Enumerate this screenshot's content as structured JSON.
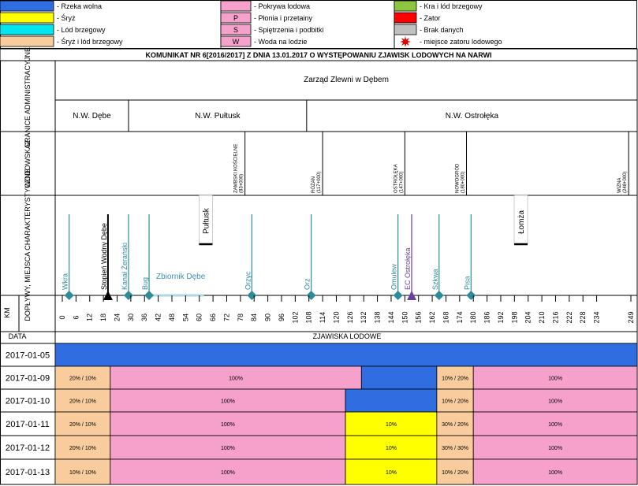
{
  "legend": [
    {
      "code": "",
      "label": "- Rzeka wolna",
      "color": "#2f6de0"
    },
    {
      "code": "",
      "label": "- Śryż",
      "color": "#ffff00"
    },
    {
      "code": "",
      "label": "- Lód brzegowy",
      "color": "#00e5ee"
    },
    {
      "code": "",
      "label": "- Śryż i lód brzegowy",
      "color": "#f9cc9d"
    },
    {
      "code": "",
      "label": "- Pokrywa lodowa",
      "color": "#f6a0cc"
    },
    {
      "code": "P",
      "label": "- Płonia i przetainy",
      "color": "#f6a0cc"
    },
    {
      "code": "S",
      "label": "- Spiętrzenia i podbitki",
      "color": "#f6a0cc"
    },
    {
      "code": "W",
      "label": "- Woda na lodzie",
      "color": "#f6a0cc"
    },
    {
      "code": "",
      "label": "- Kra i lód brzegowy",
      "color": "#8cc63f"
    },
    {
      "code": "",
      "label": "- Zator",
      "color": "#ff0000"
    },
    {
      "code": "",
      "label": "- Brak danych",
      "color": "#c0c0c0"
    },
    {
      "code": "",
      "label": "- miejsce zatoru lodowego",
      "color": "star"
    }
  ],
  "title": "KOMUNIKAT NR 6[2016/2017] Z DNIA 13.01.2017 O WYSTĘPOWANIU ZJAWISK LODOWYCH NA NARWI",
  "row_labels": {
    "granice": "GRANICE ADMINISTRACYJNE",
    "wodowskaz": "WODOWSKAZ",
    "doplywy": "DOPŁYWY, MIEJSCA CHARAKTERYSTYCZNE",
    "km": "KM",
    "data": "DATA",
    "zjawiska": "ZJAWISKA LODOWE"
  },
  "zarzad": "Zarząd Zlewni w Dębem",
  "nw": [
    {
      "label": "N.W. Dębe",
      "km_start": -3,
      "km_end": 29
    },
    {
      "label": "N.W. Pułtusk",
      "km_start": 29,
      "km_end": 107
    },
    {
      "label": "N.W. Ostrołęka",
      "km_start": 107,
      "km_end": 250
    }
  ],
  "gauges": [
    {
      "name": "ZAMBSKI KOŚCIELNE",
      "km_text": "(83+000)",
      "km": 80
    },
    {
      "name": "RÓŻAN",
      "km_text": "(117+000)",
      "km": 114
    },
    {
      "name": "OSTROŁĘKA",
      "km_text": "(147+000)",
      "km": 150
    },
    {
      "name": "NOWOGRÓD",
      "km_text": "(180+000)",
      "km": 177
    },
    {
      "name": "WIZNA",
      "km_text": "(248+000)",
      "km": 248
    }
  ],
  "features": [
    {
      "name": "Wkra",
      "km": 3,
      "type": "tributary"
    },
    {
      "name": "Stopień Wodny Dębe",
      "km": 20,
      "type": "dam"
    },
    {
      "name": "Kanał Żerański",
      "km": 29,
      "type": "tributary"
    },
    {
      "name": "Bug",
      "km": 38,
      "type": "tributary"
    },
    {
      "name": "Orzyc",
      "km": 83,
      "type": "tributary"
    },
    {
      "name": "Orz",
      "km": 109,
      "type": "tributary"
    },
    {
      "name": "Omulew",
      "km": 147,
      "type": "tributary"
    },
    {
      "name": "EC Ostrołęka",
      "km": 153,
      "type": "plant"
    },
    {
      "name": "Szkwa",
      "km": 165,
      "type": "tributary"
    },
    {
      "name": "Pisa",
      "km": 179,
      "type": "tributary"
    }
  ],
  "reservoir": {
    "name": "Zbiornik Dębe",
    "km_start": 38,
    "km_end": 62
  },
  "towns": [
    {
      "name": "Pułtusk",
      "km": 63
    },
    {
      "name": "Łomża",
      "km": 201
    }
  ],
  "km_ticks": [
    "0",
    "6",
    "12",
    "18",
    "24",
    "30",
    "36",
    "42",
    "48",
    "54",
    "60",
    "66",
    "72",
    "78",
    "84",
    "90",
    "96",
    "102",
    "108",
    "114",
    "120",
    "126",
    "132",
    "138",
    "144",
    "150",
    "156",
    "162",
    "168",
    "174",
    "180",
    "186",
    "192",
    "198",
    "204",
    "210",
    "216",
    "222",
    "228",
    "234",
    "249"
  ],
  "dates": [
    {
      "date": "2017-01-05",
      "segments": [
        {
          "km_start": -3,
          "km_end": 250,
          "color": "#2f6de0",
          "text": ""
        }
      ]
    },
    {
      "date": "2017-01-09",
      "segments": [
        {
          "km_start": -3,
          "km_end": 21,
          "color": "#f9cc9d",
          "text": "20% / 10%"
        },
        {
          "km_start": 21,
          "km_end": 131,
          "color": "#f6a0cc",
          "text": "100%"
        },
        {
          "km_start": 131,
          "km_end": 164,
          "color": "#2f6de0",
          "text": ""
        },
        {
          "km_start": 164,
          "km_end": 180,
          "color": "#f9cc9d",
          "text": "10% / 20%"
        },
        {
          "km_start": 180,
          "km_end": 250,
          "color": "#f6a0cc",
          "text": "100%"
        }
      ]
    },
    {
      "date": "2017-01-10",
      "segments": [
        {
          "km_start": -3,
          "km_end": 21,
          "color": "#f9cc9d",
          "text": "20% / 10%"
        },
        {
          "km_start": 21,
          "km_end": 124,
          "color": "#f6a0cc",
          "text": "100%"
        },
        {
          "km_start": 124,
          "km_end": 164,
          "color": "#2f6de0",
          "text": ""
        },
        {
          "km_start": 164,
          "km_end": 180,
          "color": "#f9cc9d",
          "text": "10% / 20%"
        },
        {
          "km_start": 180,
          "km_end": 250,
          "color": "#f6a0cc",
          "text": "100%"
        }
      ]
    },
    {
      "date": "2017-01-11",
      "segments": [
        {
          "km_start": -3,
          "km_end": 21,
          "color": "#f9cc9d",
          "text": "20% / 10%"
        },
        {
          "km_start": 21,
          "km_end": 124,
          "color": "#f6a0cc",
          "text": "100%"
        },
        {
          "km_start": 124,
          "km_end": 164,
          "color": "#ffff00",
          "text": "10%"
        },
        {
          "km_start": 164,
          "km_end": 180,
          "color": "#f9cc9d",
          "text": "30% / 20%"
        },
        {
          "km_start": 180,
          "km_end": 250,
          "color": "#f6a0cc",
          "text": "100%"
        }
      ]
    },
    {
      "date": "2017-01-12",
      "segments": [
        {
          "km_start": -3,
          "km_end": 21,
          "color": "#f9cc9d",
          "text": "20% / 10%"
        },
        {
          "km_start": 21,
          "km_end": 124,
          "color": "#f6a0cc",
          "text": "100%"
        },
        {
          "km_start": 124,
          "km_end": 164,
          "color": "#ffff00",
          "text": "10%"
        },
        {
          "km_start": 164,
          "km_end": 180,
          "color": "#f9cc9d",
          "text": "30% / 30%"
        },
        {
          "km_start": 180,
          "km_end": 250,
          "color": "#f6a0cc",
          "text": "100%"
        }
      ]
    },
    {
      "date": "2017-01-13",
      "segments": [
        {
          "km_start": -3,
          "km_end": 21,
          "color": "#f9cc9d",
          "text": "10% / 10%"
        },
        {
          "km_start": 21,
          "km_end": 124,
          "color": "#f6a0cc",
          "text": "100%"
        },
        {
          "km_start": 124,
          "km_end": 164,
          "color": "#ffff00",
          "text": "10%"
        },
        {
          "km_start": 164,
          "km_end": 180,
          "color": "#f9cc9d",
          "text": "10% / 20%"
        },
        {
          "km_start": 180,
          "km_end": 250,
          "color": "#f6a0cc",
          "text": "100%"
        }
      ]
    }
  ],
  "colors": {
    "river_marker": "#2e8b9a",
    "reservoir": "#add8e6",
    "plant": "#6a3fa0",
    "grid": "#000000"
  }
}
